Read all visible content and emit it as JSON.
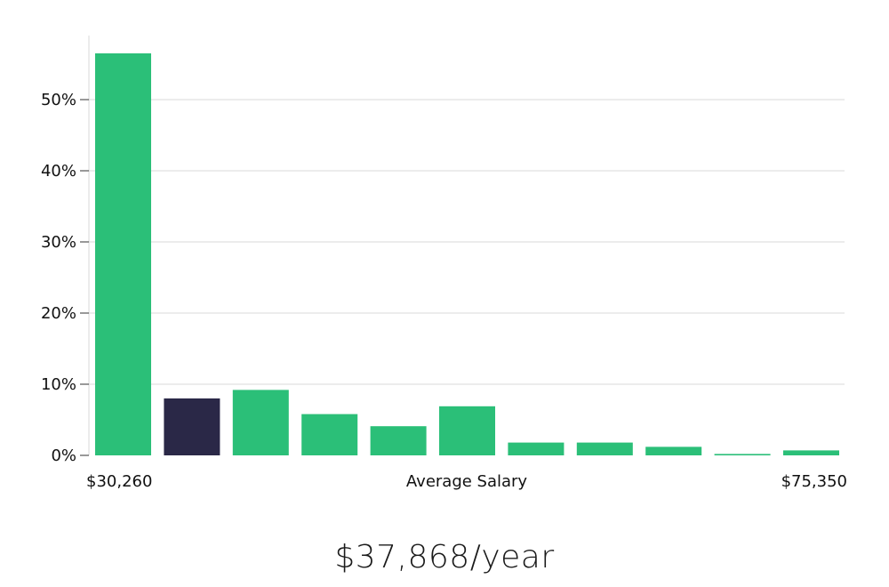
{
  "chart_data": {
    "type": "bar",
    "title": "",
    "xlabel": "Average Salary",
    "ylabel": "",
    "x_start_label": "$30,260",
    "x_end_label": "$75,350",
    "ylim": [
      0,
      59
    ],
    "yticks": [
      0,
      10,
      20,
      30,
      40,
      50
    ],
    "ytick_labels": [
      "0%",
      "10%",
      "20%",
      "30%",
      "40%",
      "50%"
    ],
    "values": [
      56.5,
      8.0,
      9.2,
      5.8,
      4.1,
      6.9,
      1.8,
      1.8,
      1.2,
      0.2,
      0.7
    ],
    "highlight_index": 1,
    "colors": {
      "bar": "#2bbf78",
      "highlight": "#2a2847"
    },
    "grid": true
  },
  "summary": {
    "salary_text": "$37,868/year"
  }
}
